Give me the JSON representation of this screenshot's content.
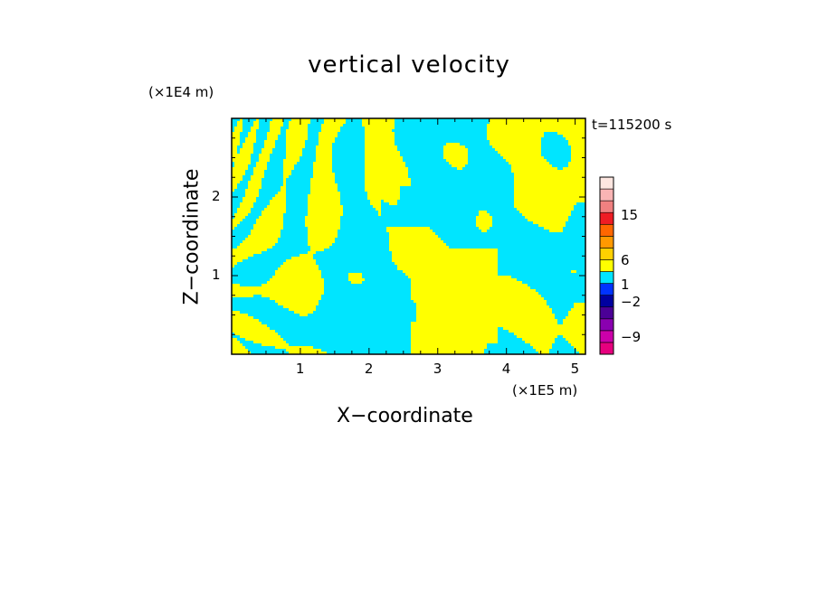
{
  "chart_data": {
    "type": "heatmap",
    "title": "vertical velocity",
    "xlabel": "X−coordinate",
    "ylabel": "Z−coordinate",
    "x_unit": "(×1E5 m)",
    "y_unit": "(×1E4 m)",
    "time_label": "t=115200 s",
    "xlim": [
      0,
      5.15
    ],
    "ylim": [
      0,
      3.0
    ],
    "x_ticks": [
      {
        "value": 1,
        "label": "1"
      },
      {
        "value": 2,
        "label": "2"
      },
      {
        "value": 3,
        "label": "3"
      },
      {
        "value": 4,
        "label": "4"
      },
      {
        "value": 5,
        "label": "5"
      }
    ],
    "y_ticks": [
      {
        "value": 1,
        "label": "1"
      },
      {
        "value": 2,
        "label": "2"
      }
    ],
    "dominant_field_colors": {
      "positive": "#ffff00",
      "negative": "#00e5ff"
    },
    "colorbar": {
      "levels": [
        {
          "color": "#e6007e"
        },
        {
          "color": "#cc00aa"
        },
        {
          "color": "#8a00b0"
        },
        {
          "color": "#4b0096"
        },
        {
          "color": "#0000a0"
        },
        {
          "color": "#0033ff"
        },
        {
          "color": "#00e5ff"
        },
        {
          "color": "#ffff00"
        },
        {
          "color": "#ffd000"
        },
        {
          "color": "#ff9900"
        },
        {
          "color": "#ff6600"
        },
        {
          "color": "#ee1c24"
        },
        {
          "color": "#f08080"
        },
        {
          "color": "#f9b4b4"
        },
        {
          "color": "#fde6e0"
        }
      ],
      "labels": [
        {
          "value": 15,
          "label": "15"
        },
        {
          "value": 6,
          "label": "6"
        },
        {
          "value": 1,
          "label": "1"
        },
        {
          "value": -2,
          "label": "−2"
        },
        {
          "value": -9,
          "label": "−9"
        }
      ]
    }
  }
}
